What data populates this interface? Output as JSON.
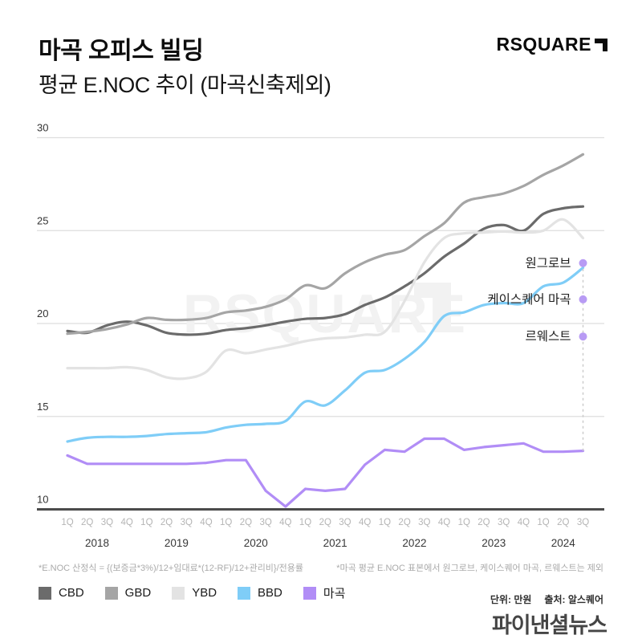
{
  "header": {
    "title": "마곡 오피스 빌딩",
    "subtitle": "평균 E.NOC 추이 (마곡신축제외)",
    "brand_logo": "RSQUARE"
  },
  "chart_data": {
    "type": "line",
    "title": "마곡 오피스 빌딩 평균 E.NOC 추이 (마곡신축제외)",
    "ylabel": "E.NOC (만원)",
    "ylim": [
      10,
      30
    ],
    "yticks": [
      10,
      15,
      20,
      25,
      30
    ],
    "grid": "horizontal",
    "legend_position": "bottom-left",
    "watermark": "RSQUARE",
    "x_quarters": [
      "1Q",
      "2Q",
      "3Q",
      "4Q",
      "1Q",
      "2Q",
      "3Q",
      "4Q",
      "1Q",
      "2Q",
      "3Q",
      "4Q",
      "1Q",
      "2Q",
      "3Q",
      "4Q",
      "1Q",
      "2Q",
      "3Q",
      "4Q",
      "1Q",
      "2Q",
      "3Q",
      "4Q",
      "1Q",
      "2Q",
      "3Q"
    ],
    "x_years": [
      {
        "label": "2018",
        "quarters": 4
      },
      {
        "label": "2019",
        "quarters": 4
      },
      {
        "label": "2020",
        "quarters": 4
      },
      {
        "label": "2021",
        "quarters": 4
      },
      {
        "label": "2022",
        "quarters": 4
      },
      {
        "label": "2023",
        "quarters": 4
      },
      {
        "label": "2024",
        "quarters": 3
      }
    ],
    "series": [
      {
        "name": "CBD",
        "color": "#6b6b6b",
        "smooth": true,
        "values": [
          19.6,
          19.5,
          19.9,
          20.1,
          19.9,
          19.5,
          19.4,
          19.45,
          19.65,
          19.75,
          19.9,
          20.1,
          20.25,
          20.3,
          20.5,
          21.0,
          21.4,
          22.0,
          22.7,
          23.6,
          24.3,
          25.1,
          25.3,
          25.0,
          25.9,
          26.2,
          26.3
        ]
      },
      {
        "name": "GBD",
        "color": "#a5a5a5",
        "smooth": true,
        "values": [
          19.45,
          19.55,
          19.7,
          19.95,
          20.3,
          20.2,
          20.2,
          20.3,
          20.6,
          20.7,
          20.9,
          21.3,
          22.05,
          21.9,
          22.7,
          23.3,
          23.7,
          23.95,
          24.7,
          25.4,
          26.5,
          26.8,
          27.0,
          27.4,
          28.0,
          28.5,
          29.1
        ]
      },
      {
        "name": "YBD",
        "color": "#e3e3e3",
        "smooth": true,
        "values": [
          17.6,
          17.6,
          17.6,
          17.65,
          17.5,
          17.1,
          17.05,
          17.4,
          18.55,
          18.4,
          18.6,
          18.8,
          19.05,
          19.2,
          19.25,
          19.4,
          19.55,
          21.2,
          23.3,
          24.6,
          24.85,
          24.9,
          24.95,
          24.9,
          25.0,
          25.6,
          24.6
        ]
      },
      {
        "name": "BBD",
        "color": "#7fcdf7",
        "smooth": true,
        "values": [
          13.65,
          13.85,
          13.9,
          13.9,
          13.95,
          14.05,
          14.1,
          14.15,
          14.4,
          14.55,
          14.6,
          14.75,
          15.8,
          15.6,
          16.4,
          17.35,
          17.5,
          18.1,
          19.0,
          20.4,
          20.6,
          21.0,
          21.1,
          21.1,
          22.0,
          22.2,
          23.0
        ]
      },
      {
        "name": "마곡",
        "color": "#b18df6",
        "smooth": false,
        "values": [
          12.9,
          12.45,
          12.45,
          12.45,
          12.45,
          12.45,
          12.45,
          12.5,
          12.65,
          12.65,
          11.0,
          10.15,
          11.1,
          11.0,
          11.1,
          12.4,
          13.2,
          13.1,
          13.8,
          13.8,
          13.2,
          13.35,
          13.45,
          13.55,
          13.1,
          13.1,
          13.15
        ]
      }
    ],
    "annotations": [
      {
        "label": "원그로브",
        "value": 23.25,
        "color": "#b89bf4"
      },
      {
        "label": "케이스퀘어 마곡",
        "value": 21.3,
        "color": "#b89bf4"
      },
      {
        "label": "르웨스트",
        "value": 19.3,
        "color": "#b89bf4"
      }
    ]
  },
  "footnotes": {
    "left": "*E.NOC 산정식 = {(보증금*3%)/12+임대료*(12-RF)/12+관리비}/전용률",
    "right": "*마곡 평균 E.NOC 표본에서 원그로브, 케이스퀘어 마곡, 르웨스트는 제외"
  },
  "source": {
    "unit_label": "단위: 만원",
    "source_label": "출처: 알스퀘어"
  },
  "publisher": "파이낸셜뉴스"
}
